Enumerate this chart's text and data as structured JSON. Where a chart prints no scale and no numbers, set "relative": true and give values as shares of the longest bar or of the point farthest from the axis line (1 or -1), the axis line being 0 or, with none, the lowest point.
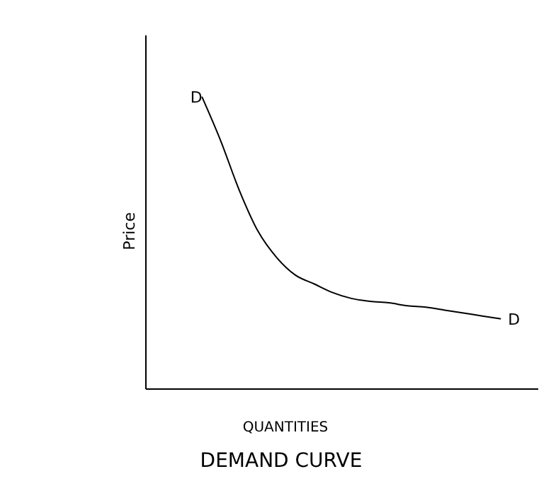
{
  "chart_data": {
    "type": "line",
    "title": "DEMAND CURVE",
    "xlabel": "QUANTITIES",
    "ylabel": "Price",
    "relative": true,
    "categories": [
      null,
      null,
      null,
      null,
      null,
      null,
      null,
      null,
      null,
      null,
      null,
      null,
      null,
      null,
      null,
      null,
      null,
      null,
      null,
      null,
      null,
      null
    ],
    "series": [
      {
        "color": "#000000",
        "values": [
          null,
          null,
          null,
          1.0,
          0.85,
          0.68,
          0.54,
          0.45,
          0.39,
          0.36,
          0.33,
          0.31,
          0.3,
          0.295,
          0.285,
          0.28,
          0.27,
          0.26,
          0.25,
          0.24,
          null,
          null
        ]
      }
    ],
    "annotations": [
      "D",
      "D"
    ],
    "marker": "none",
    "line_style": "solid",
    "grid": false
  }
}
